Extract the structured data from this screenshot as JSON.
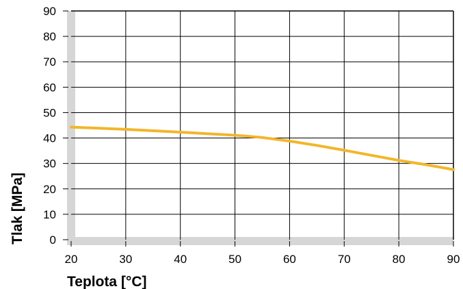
{
  "chart_data": {
    "type": "line",
    "xlabel": "Teplota [°C]",
    "ylabel": "Tlak [MPa]",
    "xlim": [
      20,
      90
    ],
    "ylim": [
      0,
      90
    ],
    "x_ticks": [
      20,
      30,
      40,
      50,
      60,
      70,
      80,
      90
    ],
    "y_ticks": [
      0,
      10,
      20,
      30,
      40,
      50,
      60,
      70,
      80,
      90
    ],
    "grid": true,
    "series": [
      {
        "color": "#f2b62b",
        "points": [
          {
            "x": 20,
            "y": 44.3
          },
          {
            "x": 30,
            "y": 43.4
          },
          {
            "x": 40,
            "y": 42.3
          },
          {
            "x": 50,
            "y": 41.1
          },
          {
            "x": 55,
            "y": 40.2
          },
          {
            "x": 60,
            "y": 38.8
          },
          {
            "x": 65,
            "y": 37.1
          },
          {
            "x": 70,
            "y": 35.2
          },
          {
            "x": 75,
            "y": 33.2
          },
          {
            "x": 80,
            "y": 31.2
          },
          {
            "x": 85,
            "y": 29.5
          },
          {
            "x": 90,
            "y": 27.6
          }
        ]
      }
    ],
    "colors": {
      "axis_band": "#d6d6d6",
      "grid": "#000000",
      "line": "#f2b62b"
    }
  }
}
